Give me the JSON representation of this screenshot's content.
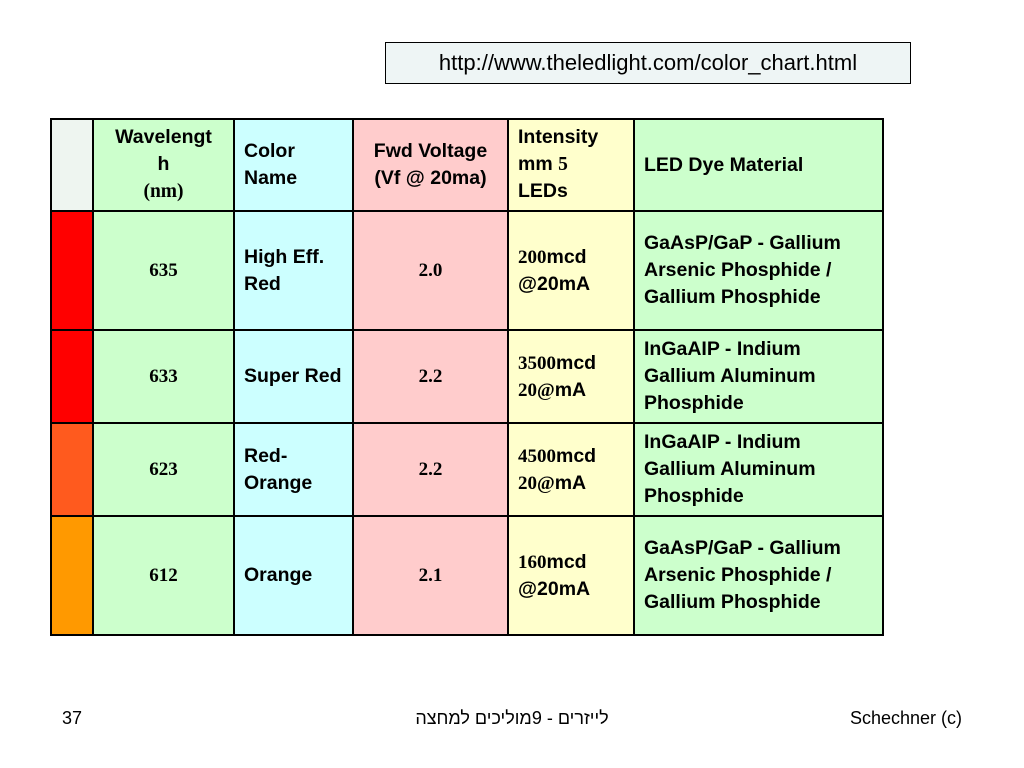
{
  "url": "http://www.theledlight.com/color_chart.html",
  "headers": {
    "wavelength_1": "Wavelengt",
    "wavelength_2": "h",
    "wavelength_3": "(nm)",
    "color_name_1": "Color",
    "color_name_2": "Name",
    "fwd_voltage_1": "Fwd Voltage",
    "fwd_voltage_2": "(Vf @ 20ma)",
    "intensity_1": "Intensity",
    "intensity_2a": "mm ",
    "intensity_2b": "5",
    "intensity_3": "LEDs",
    "dye": "LED Dye Material"
  },
  "rows": [
    {
      "swatch": "#ff0000",
      "wavelength": "635",
      "name": "High Eff. Red",
      "voltage": "2.0",
      "int_num": "200",
      "int_l1_rest": "mcd",
      "int_l2": "@20mA",
      "dye": "GaAsP/GaP - Gallium Arsenic Phosphide / Gallium Phosphide"
    },
    {
      "swatch": "#ff0000",
      "wavelength": "633",
      "name": "Super Red",
      "voltage": "2.2",
      "int_num": "3500",
      "int_l1_rest": "mcd",
      "int_l2_num": "20@",
      "int_l2_rest": "mA",
      "dye": "InGaAIP - Indium Gallium Aluminum Phosphide"
    },
    {
      "swatch": "#ff5a1e",
      "wavelength": "623",
      "name": "Red-Orange",
      "voltage": "2.2",
      "int_num": "4500",
      "int_l1_rest": "mcd",
      "int_l2_num": "20@",
      "int_l2_rest": "mA",
      "dye": "InGaAIP - Indium Gallium Aluminum Phosphide"
    },
    {
      "swatch": "#ff9900",
      "wavelength": "612",
      "name": "Orange",
      "voltage": "2.1",
      "int_num": "160",
      "int_l1_rest": "mcd",
      "int_l2": "@20mA",
      "dye": "GaAsP/GaP - Gallium Arsenic Phosphide / Gallium Phosphide"
    }
  ],
  "footer": {
    "page": "37",
    "center": "לייזרים  - 9מוליכים למחצה",
    "right": "Schechner (c)"
  }
}
